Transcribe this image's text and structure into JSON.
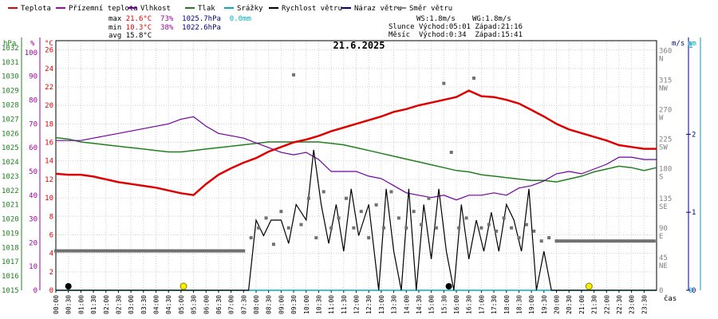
{
  "legend": [
    {
      "label": "Teplota",
      "color": "#e00000"
    },
    {
      "label": "Přízemní teplota",
      "color": "#b000b0"
    },
    {
      "label": "Vlhkost",
      "color": "#7000a0"
    },
    {
      "label": "Tlak",
      "color": "#208020"
    },
    {
      "label": "Srážky",
      "color": "#00b0c0"
    },
    {
      "label": "Rychlost větru",
      "color": "#000000"
    },
    {
      "label": "Náraz větru",
      "color": "#000080"
    },
    {
      "label": "Směr větru",
      "color": "#808080"
    }
  ],
  "stats": {
    "max_label": "max",
    "max_temp": "21.6°C",
    "max_hum": "73%",
    "max_press": "1025.7hPa",
    "max_rain": "0.0mm",
    "min_label": "min",
    "min_temp": "10.3°C",
    "min_hum": "38%",
    "min_press": "1022.6hPa",
    "avg_label": "avg",
    "avg_temp": "15.8°C",
    "ws": "WS:1.8m/s",
    "wg": "WG:1.8m/s",
    "sun_label": "Slunce",
    "sunrise": "Východ:05:01",
    "sunset": "Západ:21:16",
    "moon_label": "Měsíc",
    "moonrise": "Východ:0:34",
    "moonset": "Západ:15:41"
  },
  "colors": {
    "grid": "#d0d0d0",
    "axis": "#000000",
    "press_axis": "#208020",
    "hum_axis": "#a000a0",
    "temp_axis": "#e00000",
    "wind_axis": "#000080",
    "rain_axis": "#00a0c0",
    "dir_axis": "#808080"
  },
  "chart_data": {
    "type": "line",
    "title": "21.6.2025",
    "xlabel": "čas",
    "axis_units": {
      "pressure": "hPa",
      "humidity": "%",
      "temperature": "°C",
      "wind": "m/s",
      "rain": "mm"
    },
    "x_ticks": [
      "00:00",
      "00:30",
      "01:00",
      "01:30",
      "02:00",
      "02:30",
      "03:00",
      "03:30",
      "04:00",
      "04:30",
      "05:00",
      "05:30",
      "06:00",
      "06:30",
      "07:00",
      "07:30",
      "08:00",
      "08:30",
      "09:00",
      "09:30",
      "10:00",
      "10:30",
      "11:00",
      "11:30",
      "12:00",
      "12:30",
      "13:00",
      "13:30",
      "14:00",
      "14:30",
      "15:00",
      "15:30",
      "16:00",
      "16:30",
      "17:00",
      "17:30",
      "18:00",
      "18:30",
      "19:00",
      "19:30",
      "20:00",
      "20:30",
      "21:00",
      "21:30",
      "22:00",
      "22:30",
      "23:00",
      "23:30"
    ],
    "temp_ticks": [
      0,
      2,
      4,
      6,
      8,
      10,
      12,
      14,
      16,
      18,
      20,
      22,
      24,
      26
    ],
    "hum_ticks": [
      0,
      10,
      20,
      30,
      40,
      50,
      60,
      70,
      80,
      90,
      100
    ],
    "press_ticks": [
      1015,
      1016,
      1017,
      1018,
      1019,
      1020,
      1021,
      1022,
      1023,
      1024,
      1025,
      1026,
      1027,
      1028,
      1029,
      1030,
      1031,
      1032
    ],
    "dir_ticks": [
      {
        "v": 0,
        "l": "0"
      },
      {
        "v": 45,
        "l": "NE"
      },
      {
        "v": 90,
        "l": "E"
      },
      {
        "v": 135,
        "l": "SE"
      },
      {
        "v": 180,
        "l": "S"
      },
      {
        "v": 225,
        "l": "SW"
      },
      {
        "v": 270,
        "l": "W"
      },
      {
        "v": 315,
        "l": "NW"
      },
      {
        "v": 360,
        "l": "N"
      }
    ],
    "wind_ticks": [
      0,
      1,
      2
    ],
    "rain_ticks": [
      0,
      1
    ],
    "ranges": {
      "temperature": [
        0,
        27
      ],
      "humidity": [
        0,
        105
      ],
      "pressure": [
        1015,
        1032.5
      ],
      "wind_direction": [
        0,
        380
      ],
      "wind": [
        0,
        3.2
      ],
      "time_hours": [
        0,
        24
      ]
    },
    "temperature": {
      "name": "Teplota",
      "unit": "°C",
      "points": [
        [
          0,
          12.6
        ],
        [
          0.5,
          12.5
        ],
        [
          1,
          12.5
        ],
        [
          1.5,
          12.3
        ],
        [
          2,
          12.0
        ],
        [
          2.5,
          11.7
        ],
        [
          3,
          11.5
        ],
        [
          3.5,
          11.3
        ],
        [
          4,
          11.1
        ],
        [
          4.5,
          10.8
        ],
        [
          5,
          10.5
        ],
        [
          5.5,
          10.3
        ],
        [
          6,
          11.5
        ],
        [
          6.5,
          12.5
        ],
        [
          7,
          13.2
        ],
        [
          7.5,
          13.8
        ],
        [
          8,
          14.3
        ],
        [
          8.5,
          15.0
        ],
        [
          9,
          15.5
        ],
        [
          9.5,
          16.0
        ],
        [
          10,
          16.3
        ],
        [
          10.5,
          16.7
        ],
        [
          11,
          17.2
        ],
        [
          11.5,
          17.6
        ],
        [
          12,
          18.0
        ],
        [
          12.5,
          18.4
        ],
        [
          13,
          18.8
        ],
        [
          13.5,
          19.3
        ],
        [
          14,
          19.6
        ],
        [
          14.5,
          20.0
        ],
        [
          15,
          20.3
        ],
        [
          15.5,
          20.6
        ],
        [
          16,
          20.9
        ],
        [
          16.5,
          21.6
        ],
        [
          17,
          21.0
        ],
        [
          17.5,
          20.9
        ],
        [
          18,
          20.6
        ],
        [
          18.5,
          20.2
        ],
        [
          19,
          19.5
        ],
        [
          19.5,
          18.8
        ],
        [
          20,
          18.0
        ],
        [
          20.5,
          17.4
        ],
        [
          21,
          17.0
        ],
        [
          21.5,
          16.6
        ],
        [
          22,
          16.2
        ],
        [
          22.5,
          15.7
        ],
        [
          23,
          15.5
        ],
        [
          23.5,
          15.3
        ],
        [
          24,
          15.3
        ]
      ]
    },
    "humidity": {
      "name": "Vlhkost",
      "unit": "%",
      "points": [
        [
          0,
          63
        ],
        [
          0.5,
          63
        ],
        [
          1,
          63
        ],
        [
          1.5,
          64
        ],
        [
          2,
          65
        ],
        [
          2.5,
          66
        ],
        [
          3,
          67
        ],
        [
          3.5,
          68
        ],
        [
          4,
          69
        ],
        [
          4.5,
          70
        ],
        [
          5,
          72
        ],
        [
          5.5,
          73
        ],
        [
          6,
          69
        ],
        [
          6.5,
          66
        ],
        [
          7,
          65
        ],
        [
          7.5,
          64
        ],
        [
          8,
          62
        ],
        [
          8.5,
          60
        ],
        [
          9,
          58
        ],
        [
          9.5,
          57
        ],
        [
          10,
          58
        ],
        [
          10.5,
          55
        ],
        [
          11,
          50
        ],
        [
          11.5,
          50
        ],
        [
          12,
          50
        ],
        [
          12.5,
          48
        ],
        [
          13,
          47
        ],
        [
          13.5,
          44
        ],
        [
          14,
          41
        ],
        [
          14.5,
          40
        ],
        [
          15,
          39
        ],
        [
          15.5,
          40
        ],
        [
          16,
          38
        ],
        [
          16.5,
          40
        ],
        [
          17,
          40
        ],
        [
          17.5,
          41
        ],
        [
          18,
          40
        ],
        [
          18.5,
          43
        ],
        [
          19,
          44
        ],
        [
          19.5,
          46
        ],
        [
          20,
          49
        ],
        [
          20.5,
          50
        ],
        [
          21,
          49
        ],
        [
          21.5,
          51
        ],
        [
          22,
          53
        ],
        [
          22.5,
          56
        ],
        [
          23,
          56
        ],
        [
          23.5,
          55
        ],
        [
          24,
          55
        ]
      ]
    },
    "pressure": {
      "name": "Tlak",
      "unit": "hPa",
      "points": [
        [
          0,
          1025.7
        ],
        [
          0.5,
          1025.6
        ],
        [
          1,
          1025.4
        ],
        [
          1.5,
          1025.3
        ],
        [
          2,
          1025.2
        ],
        [
          2.5,
          1025.1
        ],
        [
          3,
          1025.0
        ],
        [
          3.5,
          1024.9
        ],
        [
          4,
          1024.8
        ],
        [
          4.5,
          1024.7
        ],
        [
          5,
          1024.7
        ],
        [
          5.5,
          1024.8
        ],
        [
          6,
          1024.9
        ],
        [
          6.5,
          1025.0
        ],
        [
          7,
          1025.1
        ],
        [
          7.5,
          1025.2
        ],
        [
          8,
          1025.3
        ],
        [
          8.5,
          1025.4
        ],
        [
          9,
          1025.4
        ],
        [
          9.5,
          1025.4
        ],
        [
          10,
          1025.4
        ],
        [
          10.5,
          1025.4
        ],
        [
          11,
          1025.3
        ],
        [
          11.5,
          1025.2
        ],
        [
          12,
          1025.0
        ],
        [
          12.5,
          1024.8
        ],
        [
          13,
          1024.6
        ],
        [
          13.5,
          1024.4
        ],
        [
          14,
          1024.2
        ],
        [
          14.5,
          1024.0
        ],
        [
          15,
          1023.8
        ],
        [
          15.5,
          1023.6
        ],
        [
          16,
          1023.4
        ],
        [
          16.5,
          1023.3
        ],
        [
          17,
          1023.1
        ],
        [
          17.5,
          1023.0
        ],
        [
          18,
          1022.9
        ],
        [
          18.5,
          1022.8
        ],
        [
          19,
          1022.7
        ],
        [
          19.5,
          1022.7
        ],
        [
          20,
          1022.6
        ],
        [
          20.5,
          1022.8
        ],
        [
          21,
          1023.0
        ],
        [
          21.5,
          1023.3
        ],
        [
          22,
          1023.5
        ],
        [
          22.5,
          1023.7
        ],
        [
          23,
          1023.6
        ],
        [
          23.5,
          1023.4
        ],
        [
          24,
          1023.6
        ]
      ]
    },
    "rain": {
      "name": "Srážky",
      "unit": "mm",
      "points": [
        [
          0,
          0
        ],
        [
          24,
          0
        ]
      ]
    },
    "wind_speed": {
      "name": "Rychlost větru",
      "unit": "m/s",
      "points": [
        [
          0,
          0
        ],
        [
          7.7,
          0
        ],
        [
          8.0,
          0.9
        ],
        [
          8.3,
          0.7
        ],
        [
          8.6,
          0.9
        ],
        [
          9.0,
          0.9
        ],
        [
          9.3,
          0.6
        ],
        [
          9.6,
          1.1
        ],
        [
          10.0,
          0.9
        ],
        [
          10.3,
          1.8
        ],
        [
          10.6,
          1.1
        ],
        [
          10.9,
          0.6
        ],
        [
          11.2,
          1.1
        ],
        [
          11.5,
          0.5
        ],
        [
          11.8,
          1.3
        ],
        [
          12.1,
          0.7
        ],
        [
          12.5,
          1.1
        ],
        [
          12.9,
          0
        ],
        [
          13.2,
          1.3
        ],
        [
          13.5,
          0.5
        ],
        [
          13.8,
          0
        ],
        [
          14.1,
          1.3
        ],
        [
          14.4,
          0
        ],
        [
          14.7,
          1.1
        ],
        [
          15.0,
          0.4
        ],
        [
          15.3,
          1.3
        ],
        [
          15.6,
          0.5
        ],
        [
          15.9,
          0
        ],
        [
          16.2,
          1.1
        ],
        [
          16.5,
          0.4
        ],
        [
          16.8,
          0.9
        ],
        [
          17.1,
          0.5
        ],
        [
          17.4,
          1.0
        ],
        [
          17.7,
          0.5
        ],
        [
          18.0,
          1.1
        ],
        [
          18.3,
          0.9
        ],
        [
          18.6,
          0.5
        ],
        [
          18.9,
          1.3
        ],
        [
          19.2,
          0
        ],
        [
          19.5,
          0.5
        ],
        [
          19.8,
          0
        ],
        [
          24,
          0
        ]
      ]
    },
    "wind_direction": {
      "name": "Směr větru",
      "unit": "°",
      "points": [
        [
          0,
          60
        ],
        [
          7.5,
          60
        ],
        [
          7.8,
          80
        ],
        [
          8.1,
          95
        ],
        [
          8.4,
          110
        ],
        [
          8.7,
          70
        ],
        [
          9.0,
          120
        ],
        [
          9.3,
          95
        ],
        [
          9.5,
          328
        ],
        [
          9.8,
          100
        ],
        [
          10.1,
          140
        ],
        [
          10.4,
          80
        ],
        [
          10.7,
          150
        ],
        [
          11.0,
          95
        ],
        [
          11.3,
          110
        ],
        [
          11.6,
          140
        ],
        [
          11.9,
          95
        ],
        [
          12.2,
          120
        ],
        [
          12.5,
          80
        ],
        [
          12.8,
          130
        ],
        [
          13.1,
          95
        ],
        [
          13.4,
          150
        ],
        [
          13.7,
          110
        ],
        [
          14.0,
          95
        ],
        [
          14.3,
          120
        ],
        [
          14.6,
          100
        ],
        [
          14.9,
          140
        ],
        [
          15.2,
          95
        ],
        [
          15.5,
          315
        ],
        [
          15.8,
          210
        ],
        [
          16.1,
          95
        ],
        [
          16.4,
          110
        ],
        [
          16.7,
          323
        ],
        [
          17.0,
          95
        ],
        [
          17.3,
          100
        ],
        [
          17.6,
          90
        ],
        [
          17.9,
          110
        ],
        [
          18.2,
          95
        ],
        [
          18.5,
          80
        ],
        [
          18.8,
          100
        ],
        [
          19.1,
          90
        ],
        [
          19.4,
          75
        ],
        [
          19.7,
          80
        ],
        [
          20.0,
          75
        ],
        [
          24,
          75
        ]
      ]
    },
    "markers": [
      {
        "type": "sun",
        "hour": 5.1
      },
      {
        "type": "sun",
        "hour": 21.3
      },
      {
        "type": "moon",
        "hour": 0.5
      },
      {
        "type": "moon",
        "hour": 15.7
      }
    ]
  }
}
